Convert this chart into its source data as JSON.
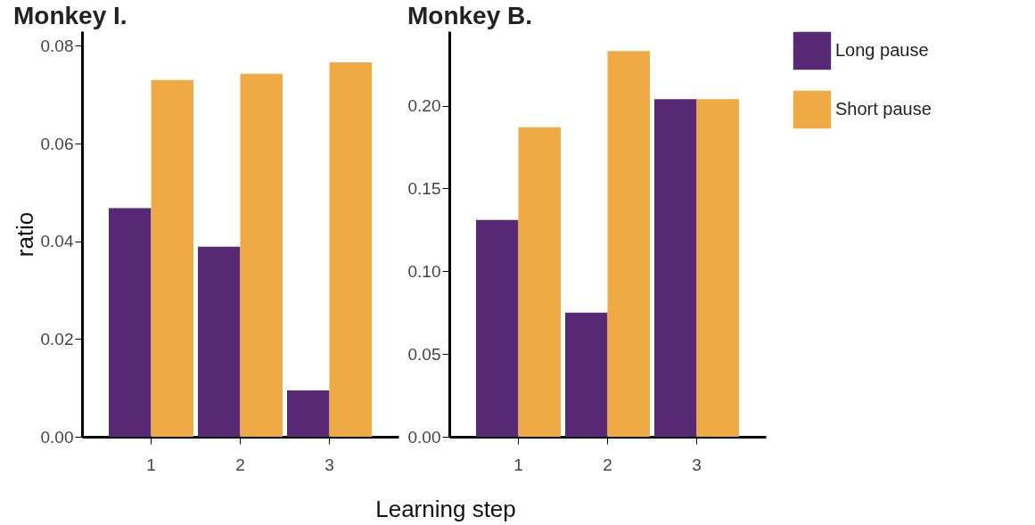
{
  "chart_data": [
    {
      "type": "bar",
      "title": "Monkey I.",
      "ylabel": "ratio",
      "xlabel": "Learning step",
      "categories": [
        "1",
        "2",
        "3"
      ],
      "series": [
        {
          "color": "#582a76",
          "values": [
            0.0468,
            0.0389,
            0.0095
          ]
        },
        {
          "color": "#f0aa45",
          "values": [
            0.073,
            0.0743,
            0.0766
          ]
        }
      ],
      "ylim": [
        0,
        0.083
      ],
      "yticks": [
        {
          "value": 0,
          "label": "0.00"
        },
        {
          "value": 0.02,
          "label": "0.02"
        },
        {
          "value": 0.04,
          "label": "0.04"
        },
        {
          "value": 0.06,
          "label": "0.06"
        },
        {
          "value": 0.08,
          "label": "0.08"
        }
      ],
      "grid": false,
      "legend": false
    },
    {
      "type": "bar",
      "title": "Monkey B.",
      "categories": [
        "1",
        "2",
        "3"
      ],
      "series": [
        {
          "name": "Long pause",
          "color": "#582a76",
          "values": [
            0.131,
            0.075,
            0.204
          ]
        },
        {
          "name": "Short pause",
          "color": "#f0aa45",
          "values": [
            0.187,
            0.233,
            0.204
          ]
        }
      ],
      "ylim": [
        0,
        0.245
      ],
      "yticks": [
        {
          "value": 0,
          "label": "0.00"
        },
        {
          "value": 0.05,
          "label": "0.05"
        },
        {
          "value": 0.1,
          "label": "0.10"
        },
        {
          "value": 0.15,
          "label": "0.15"
        },
        {
          "value": 0.2,
          "label": "0.20"
        }
      ],
      "grid": false,
      "legend": "right"
    }
  ]
}
